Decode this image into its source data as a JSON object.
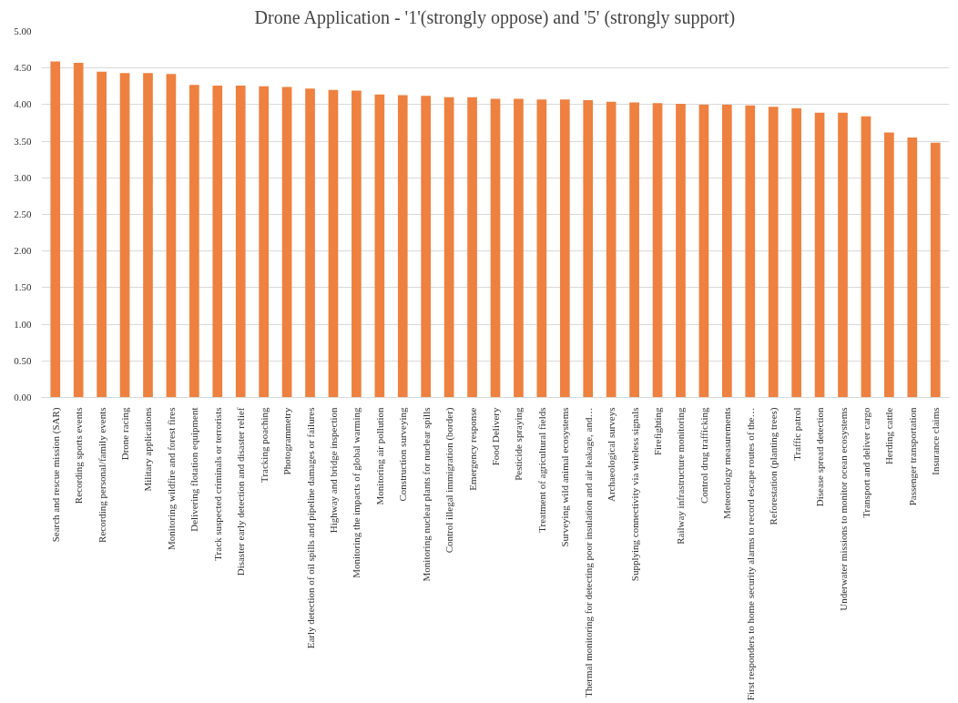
{
  "chart_data": {
    "type": "bar",
    "title": "Drone Application - '1'(strongly oppose) and '5' (strongly support)",
    "categories": [
      "Search and rescue mission (SAR)",
      "Recording sports events",
      "Recording personal/family events",
      "Drone racing",
      "Military applications",
      "Monitoring wildfire and forest fires",
      "Delivering flotation equipment",
      "Track suspected criminals or terrorists",
      "Disaster early detection and disaster relief",
      "Tracking poaching",
      "Photogrammetry",
      "Early detection of oil spills and pipeline damages or failures",
      "Highway and bridge inspection",
      "Monitoring the impacts of global warming",
      "Monitoring air pollution",
      "Construction surveying",
      "Monitoring nuclear plants for nuclear spills",
      "Control illegal immigration (border)",
      "Emergency response",
      "Food Delivery",
      "Pesticide spraying",
      "Treatment of agricultural fields",
      "Surveying wild animal ecosystems",
      "Thermal monitoring for detecting poor insulation and air leakage, and…",
      "Archaeological surveys",
      "Supplying connectivity via wireless signals",
      "Firefighting",
      "Railway infrastructure monitoring",
      "Control drug trafficking",
      "Meteorology measurements",
      "First responders to home security alarms to record escape routes of the…",
      "Reforestation (planting trees)",
      "Traffic patrol",
      "Disease spread detection",
      "Underwater missions to monitor ocean ecosystems",
      "Transport and deliver cargo",
      "Herding cattle",
      "Passenger transportation",
      "Insurance claims"
    ],
    "values": [
      4.59,
      4.57,
      4.45,
      4.43,
      4.43,
      4.42,
      4.27,
      4.26,
      4.26,
      4.25,
      4.24,
      4.22,
      4.2,
      4.19,
      4.14,
      4.13,
      4.12,
      4.1,
      4.1,
      4.08,
      4.08,
      4.07,
      4.07,
      4.06,
      4.04,
      4.03,
      4.02,
      4.01,
      4.0,
      4.0,
      3.99,
      3.97,
      3.95,
      3.89,
      3.89,
      3.84,
      3.62,
      3.55,
      3.48
    ],
    "color": "#ee8040",
    "ylim": [
      0,
      5
    ],
    "yticks": [
      {
        "value": 0,
        "label": "0.00"
      },
      {
        "value": 0.5,
        "label": "0.50"
      },
      {
        "value": 1,
        "label": "1.00"
      },
      {
        "value": 1.5,
        "label": "1.50"
      },
      {
        "value": 2,
        "label": "2.00"
      },
      {
        "value": 2.5,
        "label": "2.50"
      },
      {
        "value": 3,
        "label": "3.00"
      },
      {
        "value": 3.5,
        "label": "3.50"
      },
      {
        "value": 4,
        "label": "4.00"
      },
      {
        "value": 4.5,
        "label": "4.50"
      },
      {
        "value": 5,
        "label": "5.00"
      }
    ],
    "grid": "y"
  }
}
